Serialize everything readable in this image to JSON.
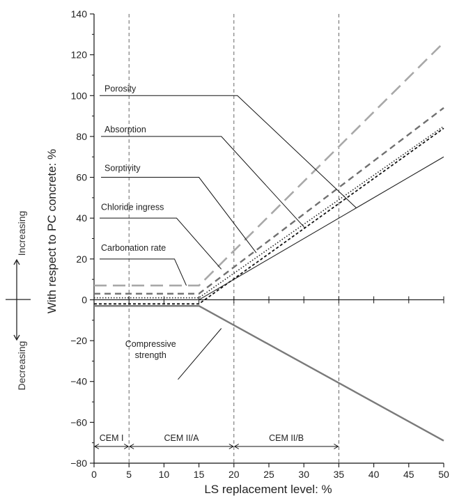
{
  "chart_data": {
    "type": "line",
    "title": "",
    "xlabel": "LS replacement level: %",
    "ylabel": "With respect to PC concrete: %",
    "xlim": [
      0,
      50
    ],
    "ylim": [
      -80,
      140
    ],
    "x_major_ticks": [
      0,
      5,
      10,
      15,
      20,
      25,
      30,
      35,
      40,
      45,
      50
    ],
    "y_major_ticks": [
      -80,
      -60,
      -40,
      -20,
      0,
      20,
      40,
      60,
      80,
      100,
      120,
      140
    ],
    "x_tick_labels": [
      "0",
      "5",
      "10",
      "15",
      "20",
      "25",
      "30",
      "35",
      "40",
      "45",
      "50"
    ],
    "y_tick_labels": [
      "−80",
      "−60",
      "−40",
      "−20",
      "0",
      "20",
      "40",
      "60",
      "80",
      "100",
      "120",
      "140"
    ],
    "grid": false,
    "side_labels": {
      "up": "Increasing",
      "down": "Decreasing"
    },
    "vertical_reference_lines": [
      5,
      20,
      35
    ],
    "zones": [
      {
        "label": "CEM I",
        "from": 0,
        "to": 5
      },
      {
        "label": "CEM II/A",
        "from": 5,
        "to": 20
      },
      {
        "label": "CEM II/B",
        "from": 20,
        "to": 35
      }
    ],
    "series": [
      {
        "name": "Porosity",
        "style": "long-dash",
        "color": "#a8a8a8",
        "x": [
          0,
          15,
          50
        ],
        "y": [
          7,
          7,
          126
        ]
      },
      {
        "name": "Absorption",
        "style": "dash",
        "color": "#707070",
        "x": [
          0,
          15,
          50
        ],
        "y": [
          3,
          3,
          94
        ]
      },
      {
        "name": "Sorptivity",
        "style": "dotted",
        "color": "#222222",
        "x": [
          0,
          15,
          50
        ],
        "y": [
          1,
          1,
          85
        ]
      },
      {
        "name": "Chloride ingress",
        "style": "short-dash",
        "color": "#111111",
        "x": [
          0,
          15,
          50
        ],
        "y": [
          -2,
          -2,
          84
        ]
      },
      {
        "name": "Carbonation rate",
        "style": "solid",
        "color": "#222222",
        "x": [
          0,
          15,
          50
        ],
        "y": [
          0,
          0,
          70
        ]
      },
      {
        "name": "Compressive strength",
        "style": "solid-thick",
        "color": "#7a7a7a",
        "x": [
          0,
          15,
          50
        ],
        "y": [
          -3,
          -3,
          -69
        ]
      }
    ],
    "annotations": [
      {
        "series": "Porosity",
        "lines": [
          "Porosity"
        ],
        "text_at": [
          1.5,
          100
        ],
        "leader": [
          [
            0.8,
            100
          ],
          [
            20.5,
            100
          ],
          [
            37.5,
            45
          ]
        ]
      },
      {
        "series": "Absorption",
        "lines": [
          "Absorption"
        ],
        "text_at": [
          1.5,
          80
        ],
        "leader": [
          [
            1.0,
            80
          ],
          [
            18.2,
            80
          ],
          [
            30.2,
            35
          ]
        ]
      },
      {
        "series": "Sorptivity",
        "lines": [
          "Sorptivity"
        ],
        "text_at": [
          1.5,
          61
        ],
        "leader": [
          [
            1.0,
            60
          ],
          [
            15.0,
            60
          ],
          [
            23.2,
            23
          ]
        ]
      },
      {
        "series": "Chloride ingress",
        "lines": [
          "Chloride ingress"
        ],
        "text_at": [
          1.0,
          42
        ],
        "leader": [
          [
            0.8,
            40
          ],
          [
            11.8,
            40
          ],
          [
            18.2,
            15
          ]
        ]
      },
      {
        "series": "Carbonation rate",
        "lines": [
          "Carbonation rate"
        ],
        "text_at": [
          1.0,
          22
        ],
        "leader": [
          [
            0.8,
            20
          ],
          [
            11.5,
            20
          ],
          [
            13.2,
            7
          ]
        ]
      },
      {
        "series": "Compressive strength",
        "lines": [
          "Compressive",
          "strength"
        ],
        "text_at": [
          5.3,
          -25
        ],
        "leader": [
          [
            12.0,
            -39
          ],
          [
            18.2,
            -14
          ]
        ]
      }
    ]
  }
}
